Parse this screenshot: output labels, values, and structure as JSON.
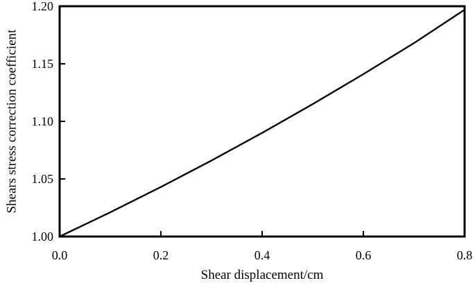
{
  "chart_data": {
    "type": "line",
    "title": "",
    "xlabel": "Shear displacement/cm",
    "ylabel": "Shears stress correction coefficient",
    "xlim": [
      0.0,
      0.8
    ],
    "ylim": [
      1.0,
      1.2
    ],
    "xticks": [
      "0.0",
      "0.2",
      "0.4",
      "0.6",
      "0.8"
    ],
    "yticks": [
      "1.00",
      "1.05",
      "1.10",
      "1.15",
      "1.20"
    ],
    "grid": false,
    "legend": "none",
    "series": [
      {
        "color": "#000000",
        "x": [
          0.0,
          0.1,
          0.2,
          0.3,
          0.4,
          0.5,
          0.6,
          0.7,
          0.8
        ],
        "y": [
          1.0,
          1.021,
          1.043,
          1.066,
          1.09,
          1.115,
          1.141,
          1.168,
          1.197
        ]
      }
    ]
  }
}
